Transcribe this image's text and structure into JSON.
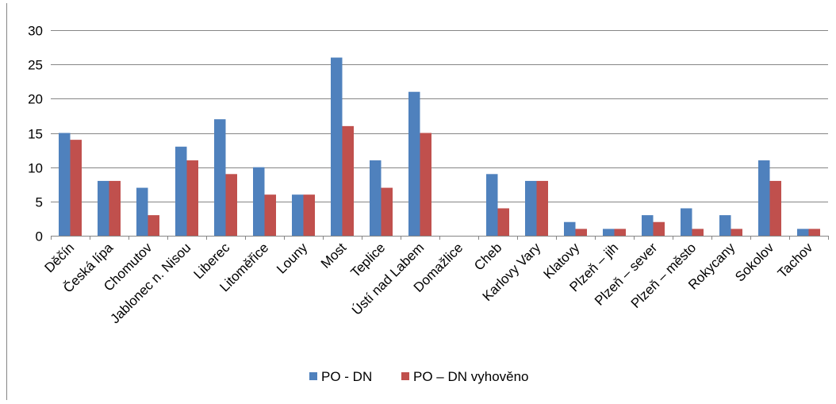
{
  "chart_data": {
    "type": "bar",
    "title": "",
    "xlabel": "",
    "ylabel": "",
    "ylim": [
      0,
      30
    ],
    "yticks": [
      "0",
      "5",
      "10",
      "15",
      "20",
      "25",
      "30"
    ],
    "grid": true,
    "legend_position": "bottom",
    "categories": [
      "Děčín",
      "Česká lípa",
      "Chomutov",
      "Jablonec n. Nisou",
      "Liberec",
      "Litoměřice",
      "Louny",
      "Most",
      "Teplice",
      "Ústí nad Labem",
      "Domažlice",
      "Cheb",
      "Karlovy Vary",
      "Klatovy",
      "Plzeň – jih",
      "Plzeň – sever",
      "Plzeň – město",
      "Rokycany",
      "Sokolov",
      "Tachov"
    ],
    "series": [
      {
        "name": "PO - DN",
        "color": "#4F81BD",
        "values": [
          15,
          8,
          7,
          13,
          17,
          10,
          6,
          26,
          11,
          21,
          0,
          9,
          8,
          2,
          1,
          3,
          4,
          3,
          11,
          1
        ]
      },
      {
        "name": "PO – DN vyhověno",
        "color": "#C0504D",
        "values": [
          14,
          8,
          3,
          11,
          9,
          6,
          6,
          16,
          7,
          15,
          0,
          4,
          8,
          1,
          1,
          2,
          1,
          1,
          8,
          1
        ]
      }
    ]
  }
}
